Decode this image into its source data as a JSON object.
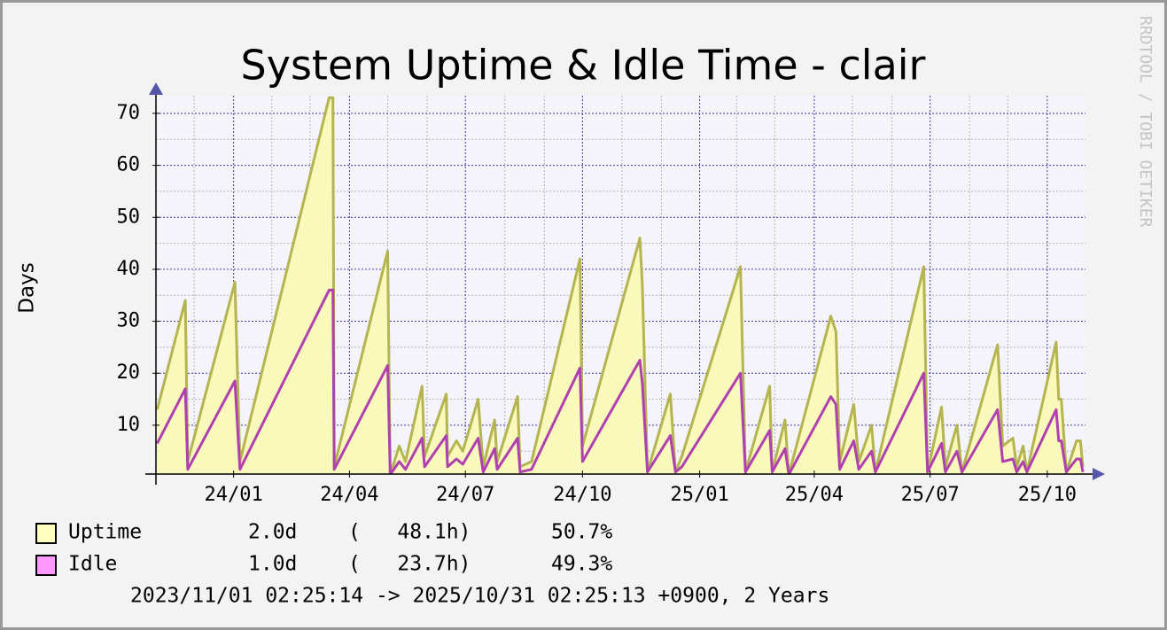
{
  "chart_data": {
    "type": "area",
    "title": "System Uptime & Idle Time - clair",
    "ylabel": "Days",
    "watermark": "RRDTOOL / TOBI OETIKER",
    "footer": "2023/11/01 02:25:14 -> 2025/10/31 02:25:13 +0900, 2 Years",
    "xlim": [
      0,
      730
    ],
    "ylim": [
      0.6,
      73.4
    ],
    "xticks": [
      {
        "value": 61,
        "label": "24/01"
      },
      {
        "value": 152,
        "label": "24/04"
      },
      {
        "value": 243,
        "label": "24/07"
      },
      {
        "value": 335,
        "label": "24/10"
      },
      {
        "value": 427,
        "label": "25/01"
      },
      {
        "value": 517,
        "label": "25/04"
      },
      {
        "value": 608,
        "label": "25/07"
      },
      {
        "value": 700,
        "label": "25/10"
      }
    ],
    "xminorticks": [
      30,
      91,
      121,
      182,
      213,
      274,
      305,
      366,
      397,
      456,
      486,
      547,
      578,
      639,
      669
    ],
    "yticks": [
      10,
      20,
      30,
      40,
      50,
      60,
      70
    ],
    "yminorticks": [
      5,
      15,
      25,
      35,
      45,
      55,
      65
    ],
    "grid": true,
    "x": [
      1,
      23,
      25,
      62,
      66,
      136,
      139,
      140,
      182,
      184,
      191,
      196,
      209,
      211,
      228,
      229,
      236,
      241,
      253,
      257,
      266,
      268,
      284,
      286,
      295,
      333,
      335,
      380,
      382,
      386,
      404,
      408,
      413,
      459,
      463,
      482,
      484,
      494,
      497,
      530,
      534,
      537,
      548,
      552,
      562,
      565,
      603,
      606,
      617,
      620,
      629,
      633,
      661,
      665,
      673,
      676,
      681,
      684,
      707,
      709,
      711,
      715,
      723,
      726,
      728
    ],
    "series": [
      {
        "name": "Uptime",
        "color": "#b4b450",
        "fill": "#f9f9bc",
        "swatch": "#ffffc0",
        "summary": [
          "2.0d",
          "(   48.1h)",
          "50.7%"
        ],
        "values": [
          13,
          34,
          3,
          37.5,
          3,
          73,
          73,
          2,
          43.5,
          0.5,
          6,
          3,
          17.5,
          4,
          16,
          4,
          7,
          5,
          15,
          2,
          11,
          3,
          15.5,
          2,
          3,
          42,
          6,
          46,
          37,
          1,
          16,
          1,
          4,
          40.5,
          1,
          17.5,
          1,
          11,
          0.5,
          31,
          28,
          3,
          14,
          3,
          10,
          1,
          40.5,
          1,
          13.5,
          2,
          10,
          1,
          25.5,
          6,
          7.5,
          2,
          6,
          1,
          26,
          15,
          15,
          1,
          7,
          7,
          2
        ]
      },
      {
        "name": "Idle",
        "color": "#b040b0",
        "swatch": "#ff99ff",
        "summary": [
          "1.0d",
          "(   23.7h)",
          "49.3%"
        ],
        "values": [
          6.5,
          17,
          1.5,
          18.5,
          1.5,
          36,
          36,
          1.5,
          21.5,
          0.5,
          3,
          1.5,
          7.5,
          2,
          8,
          2,
          3.5,
          2.5,
          7.5,
          1,
          5.5,
          1.5,
          7.5,
          1,
          1.5,
          21,
          3,
          22.5,
          18,
          1,
          8,
          1,
          2,
          20,
          1,
          9,
          1,
          5.5,
          0.5,
          15.5,
          14,
          1.5,
          7,
          1.5,
          5,
          1,
          20,
          1,
          6.5,
          1,
          5,
          1,
          13,
          3,
          3.5,
          1,
          3,
          1,
          13,
          7,
          7,
          1,
          3.5,
          3.5,
          1
        ]
      }
    ]
  }
}
